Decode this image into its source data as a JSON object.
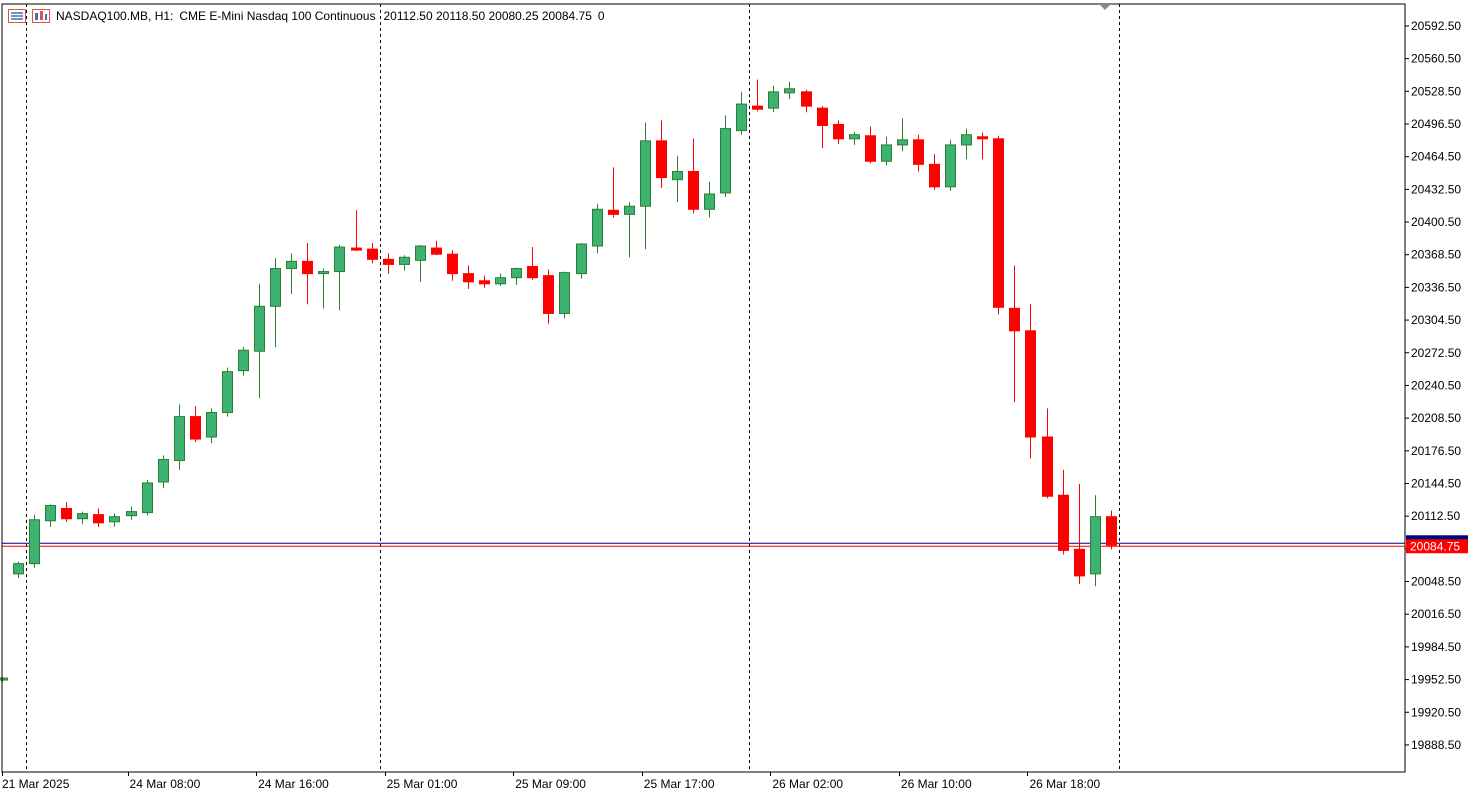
{
  "header": {
    "symbol": "NASDAQ100.MB, H1:",
    "description": "CME E-Mini Nasdaq 100 Continuous",
    "ohlc": "20112.50 20118.50 20080.25 20084.75",
    "volume": "0"
  },
  "price_axis": {
    "ticks": [
      "20592.50",
      "20560.50",
      "20528.50",
      "20496.50",
      "20464.50",
      "20432.50",
      "20400.50",
      "20368.50",
      "20336.50",
      "20304.50",
      "20272.50",
      "20240.50",
      "20208.50",
      "20176.50",
      "20144.50",
      "20112.50",
      "20080.50",
      "20048.50",
      "20016.50",
      "19984.50",
      "19952.50",
      "19920.50",
      "19888.50"
    ],
    "ymin": 19862,
    "ymax": 20614
  },
  "time_axis": {
    "labels": [
      "21 Mar 2025",
      "24 Mar 08:00",
      "24 Mar 16:00",
      "25 Mar 01:00",
      "25 Mar 09:00",
      "25 Mar 17:00",
      "26 Mar 02:00",
      "26 Mar 10:00",
      "26 Mar 18:00"
    ]
  },
  "current_price": {
    "label": "20084.75",
    "bid_color": "#ff0000",
    "ask_color": "#000080"
  },
  "colors": {
    "bull": "#3cb371",
    "bear": "#ff0000",
    "grid_line": "#000000",
    "axis": "#000000"
  },
  "chart_data": {
    "type": "candlestick",
    "title": "NASDAQ100.MB, H1: CME E-Mini Nasdaq 100 Continuous",
    "timeframe": "H1",
    "ylim": [
      19862,
      20614
    ],
    "grid": "vertical dashed separators at session boundaries",
    "candles": [
      {
        "o": 19953,
        "h": 19955,
        "l": 19950,
        "c": 19954
      },
      {
        "o": 20056,
        "h": 20068,
        "l": 20052,
        "c": 20066
      },
      {
        "o": 20066,
        "h": 20114,
        "l": 20062,
        "c": 20109
      },
      {
        "o": 20108,
        "h": 20124,
        "l": 20102,
        "c": 20123
      },
      {
        "o": 20120,
        "h": 20126,
        "l": 20107,
        "c": 20110
      },
      {
        "o": 20110,
        "h": 20117,
        "l": 20105,
        "c": 20115
      },
      {
        "o": 20114,
        "h": 20120,
        "l": 20102,
        "c": 20106
      },
      {
        "o": 20107,
        "h": 20115,
        "l": 20102,
        "c": 20112
      },
      {
        "o": 20113,
        "h": 20122,
        "l": 20109,
        "c": 20117
      },
      {
        "o": 20116,
        "h": 20148,
        "l": 20113,
        "c": 20145
      },
      {
        "o": 20146,
        "h": 20172,
        "l": 20140,
        "c": 20168
      },
      {
        "o": 20167,
        "h": 20222,
        "l": 20158,
        "c": 20210
      },
      {
        "o": 20210,
        "h": 20220,
        "l": 20185,
        "c": 20188
      },
      {
        "o": 20190,
        "h": 20218,
        "l": 20184,
        "c": 20214
      },
      {
        "o": 20214,
        "h": 20258,
        "l": 20210,
        "c": 20254
      },
      {
        "o": 20255,
        "h": 20278,
        "l": 20250,
        "c": 20275
      },
      {
        "o": 20274,
        "h": 20340,
        "l": 20228,
        "c": 20318
      },
      {
        "o": 20318,
        "h": 20365,
        "l": 20278,
        "c": 20355
      },
      {
        "o": 20355,
        "h": 20370,
        "l": 20330,
        "c": 20362
      },
      {
        "o": 20362,
        "h": 20380,
        "l": 20320,
        "c": 20350
      },
      {
        "o": 20350,
        "h": 20355,
        "l": 20316,
        "c": 20352
      },
      {
        "o": 20352,
        "h": 20378,
        "l": 20314,
        "c": 20376
      },
      {
        "o": 20375,
        "h": 20412,
        "l": 20372,
        "c": 20374
      },
      {
        "o": 20374,
        "h": 20380,
        "l": 20360,
        "c": 20364
      },
      {
        "o": 20364,
        "h": 20370,
        "l": 20350,
        "c": 20359
      },
      {
        "o": 20359,
        "h": 20368,
        "l": 20353,
        "c": 20366
      },
      {
        "o": 20363,
        "h": 20378,
        "l": 20342,
        "c": 20377
      },
      {
        "o": 20375,
        "h": 20382,
        "l": 20368,
        "c": 20369
      },
      {
        "o": 20369,
        "h": 20373,
        "l": 20343,
        "c": 20350
      },
      {
        "o": 20350,
        "h": 20358,
        "l": 20335,
        "c": 20342
      },
      {
        "o": 20343,
        "h": 20348,
        "l": 20336,
        "c": 20340
      },
      {
        "o": 20340,
        "h": 20350,
        "l": 20338,
        "c": 20346
      },
      {
        "o": 20346,
        "h": 20356,
        "l": 20339,
        "c": 20355
      },
      {
        "o": 20357,
        "h": 20376,
        "l": 20344,
        "c": 20346
      },
      {
        "o": 20348,
        "h": 20354,
        "l": 20301,
        "c": 20311
      },
      {
        "o": 20311,
        "h": 20352,
        "l": 20306,
        "c": 20351
      },
      {
        "o": 20350,
        "h": 20380,
        "l": 20345,
        "c": 20379
      },
      {
        "o": 20377,
        "h": 20418,
        "l": 20370,
        "c": 20413
      },
      {
        "o": 20412,
        "h": 20454,
        "l": 20405,
        "c": 20408
      },
      {
        "o": 20408,
        "h": 20420,
        "l": 20366,
        "c": 20416
      },
      {
        "o": 20416,
        "h": 20498,
        "l": 20374,
        "c": 20480
      },
      {
        "o": 20480,
        "h": 20500,
        "l": 20434,
        "c": 20444
      },
      {
        "o": 20442,
        "h": 20465,
        "l": 20420,
        "c": 20450
      },
      {
        "o": 20450,
        "h": 20482,
        "l": 20409,
        "c": 20413
      },
      {
        "o": 20413,
        "h": 20440,
        "l": 20405,
        "c": 20428
      },
      {
        "o": 20429,
        "h": 20505,
        "l": 20425,
        "c": 20492
      },
      {
        "o": 20490,
        "h": 20528,
        "l": 20486,
        "c": 20516
      },
      {
        "o": 20514,
        "h": 20540,
        "l": 20509,
        "c": 20511
      },
      {
        "o": 20512,
        "h": 20534,
        "l": 20508,
        "c": 20528
      },
      {
        "o": 20527,
        "h": 20538,
        "l": 20521,
        "c": 20531
      },
      {
        "o": 20528,
        "h": 20530,
        "l": 20508,
        "c": 20514
      },
      {
        "o": 20512,
        "h": 20514,
        "l": 20473,
        "c": 20495
      },
      {
        "o": 20496,
        "h": 20500,
        "l": 20477,
        "c": 20482
      },
      {
        "o": 20482,
        "h": 20489,
        "l": 20476,
        "c": 20486
      },
      {
        "o": 20485,
        "h": 20494,
        "l": 20458,
        "c": 20460
      },
      {
        "o": 20460,
        "h": 20484,
        "l": 20456,
        "c": 20476
      },
      {
        "o": 20476,
        "h": 20502,
        "l": 20470,
        "c": 20481
      },
      {
        "o": 20481,
        "h": 20486,
        "l": 20450,
        "c": 20457
      },
      {
        "o": 20457,
        "h": 20467,
        "l": 20432,
        "c": 20435
      },
      {
        "o": 20435,
        "h": 20481,
        "l": 20431,
        "c": 20476
      },
      {
        "o": 20476,
        "h": 20492,
        "l": 20462,
        "c": 20486
      },
      {
        "o": 20484,
        "h": 20488,
        "l": 20462,
        "c": 20483
      },
      {
        "o": 20482,
        "h": 20485,
        "l": 20310,
        "c": 20317
      },
      {
        "o": 20316,
        "h": 20358,
        "l": 20224,
        "c": 20294
      },
      {
        "o": 20294,
        "h": 20320,
        "l": 20169,
        "c": 20190
      },
      {
        "o": 20190,
        "h": 20218,
        "l": 20130,
        "c": 20132
      },
      {
        "o": 20133,
        "h": 20158,
        "l": 20075,
        "c": 20079
      },
      {
        "o": 20080,
        "h": 20144,
        "l": 20046,
        "c": 20054
      },
      {
        "o": 20056,
        "h": 20133,
        "l": 20044,
        "c": 20112
      },
      {
        "o": 20112,
        "h": 20118,
        "l": 20080,
        "c": 20084
      }
    ],
    "separators_after_index": [
      1,
      23,
      46,
      69
    ]
  }
}
